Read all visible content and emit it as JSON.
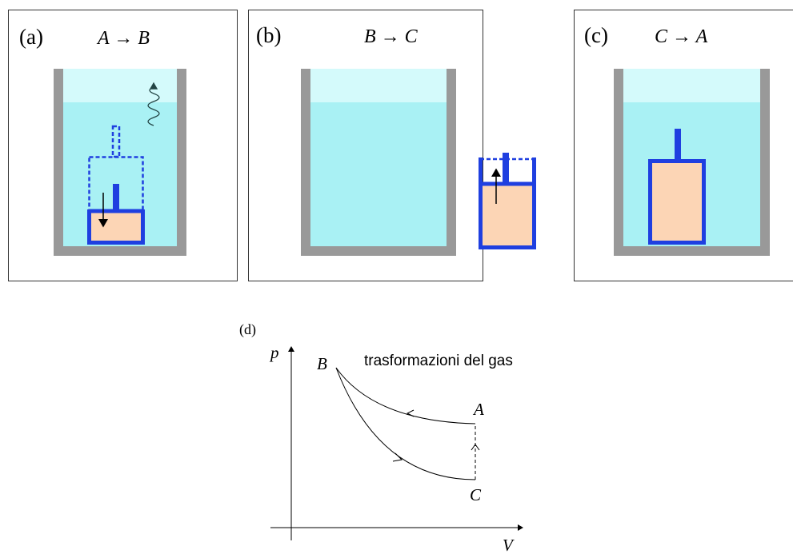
{
  "panels": [
    {
      "label": "(a)",
      "title": "A → B"
    },
    {
      "label": "(b)",
      "title": "B → C"
    },
    {
      "label": "(c)",
      "title": "C → A"
    }
  ],
  "plot": {
    "label": "(d)",
    "title": "trasformazioni del gas",
    "y_axis": "p",
    "x_axis": "V",
    "points": [
      "B",
      "A",
      "C"
    ]
  }
}
